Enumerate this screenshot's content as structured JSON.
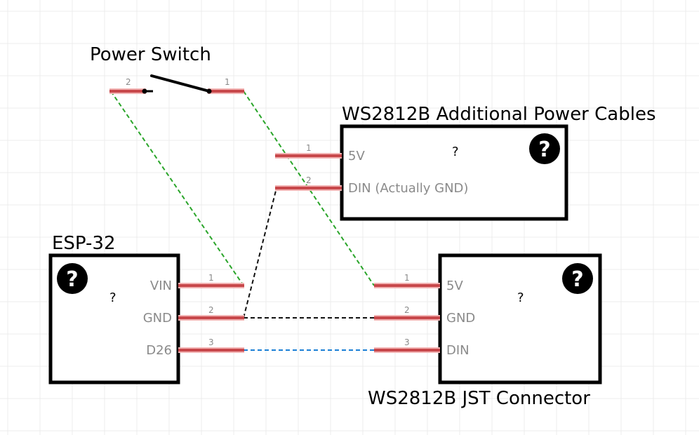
{
  "power_switch": {
    "title": "Power Switch",
    "pin_left": "2",
    "pin_right": "1"
  },
  "additional_power": {
    "title": "WS2812B Additional Power Cables",
    "placeholder": "?",
    "help_glyph": "?",
    "pins": [
      {
        "num": "1",
        "label": "5V"
      },
      {
        "num": "2",
        "label": "DIN (Actually GND)"
      }
    ]
  },
  "esp32": {
    "title": "ESP-32",
    "placeholder": "?",
    "help_glyph": "?",
    "pins": [
      {
        "num": "1",
        "label": "VIN"
      },
      {
        "num": "2",
        "label": "GND"
      },
      {
        "num": "3",
        "label": "D26"
      }
    ]
  },
  "jst": {
    "title": "WS2812B JST Connector",
    "placeholder": "?",
    "help_glyph": "?",
    "pins": [
      {
        "num": "1",
        "label": "5V"
      },
      {
        "num": "2",
        "label": "GND"
      },
      {
        "num": "3",
        "label": "DIN"
      }
    ]
  },
  "colors": {
    "power_wire": "#2aa52a",
    "ground_wire": "#111111",
    "data_wire": "#1a7fd6",
    "pin": "#c7474a",
    "pin_glow": "#f2b3b3",
    "grid": "#ececec"
  },
  "icons": {
    "help": "help-circle-icon"
  }
}
